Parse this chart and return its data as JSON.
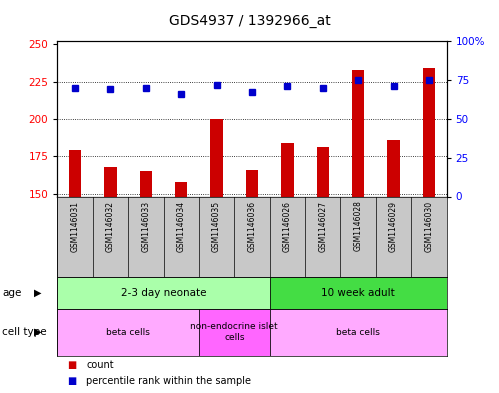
{
  "title": "GDS4937 / 1392966_at",
  "samples": [
    "GSM1146031",
    "GSM1146032",
    "GSM1146033",
    "GSM1146034",
    "GSM1146035",
    "GSM1146036",
    "GSM1146026",
    "GSM1146027",
    "GSM1146028",
    "GSM1146029",
    "GSM1146030"
  ],
  "counts": [
    179,
    168,
    165,
    158,
    200,
    166,
    184,
    181,
    233,
    186,
    234
  ],
  "percentiles": [
    70,
    69,
    70,
    66,
    72,
    67,
    71,
    70,
    75,
    71,
    75
  ],
  "ylim_left": [
    148,
    252
  ],
  "ylim_right": [
    0,
    100
  ],
  "yticks_left": [
    150,
    175,
    200,
    225,
    250
  ],
  "yticks_right": [
    0,
    25,
    50,
    75,
    100
  ],
  "bar_color": "#cc0000",
  "dot_color": "#0000cc",
  "title_fontsize": 10,
  "age_groups": [
    {
      "label": "2-3 day neonate",
      "start": 0,
      "end": 6,
      "color": "#aaffaa"
    },
    {
      "label": "10 week adult",
      "start": 6,
      "end": 11,
      "color": "#44dd44"
    }
  ],
  "cell_type_groups": [
    {
      "label": "beta cells",
      "start": 0,
      "end": 4,
      "color": "#ffaaff"
    },
    {
      "label": "non-endocrine islet\ncells",
      "start": 4,
      "end": 6,
      "color": "#ff66ff"
    },
    {
      "label": "beta cells",
      "start": 6,
      "end": 11,
      "color": "#ffaaff"
    }
  ],
  "age_label": "age",
  "cell_type_label": "cell type",
  "legend_count_label": "count",
  "legend_pct_label": "percentile rank within the sample",
  "bar_width": 0.35,
  "sample_bg": "#c8c8c8",
  "background_color": "#ffffff"
}
